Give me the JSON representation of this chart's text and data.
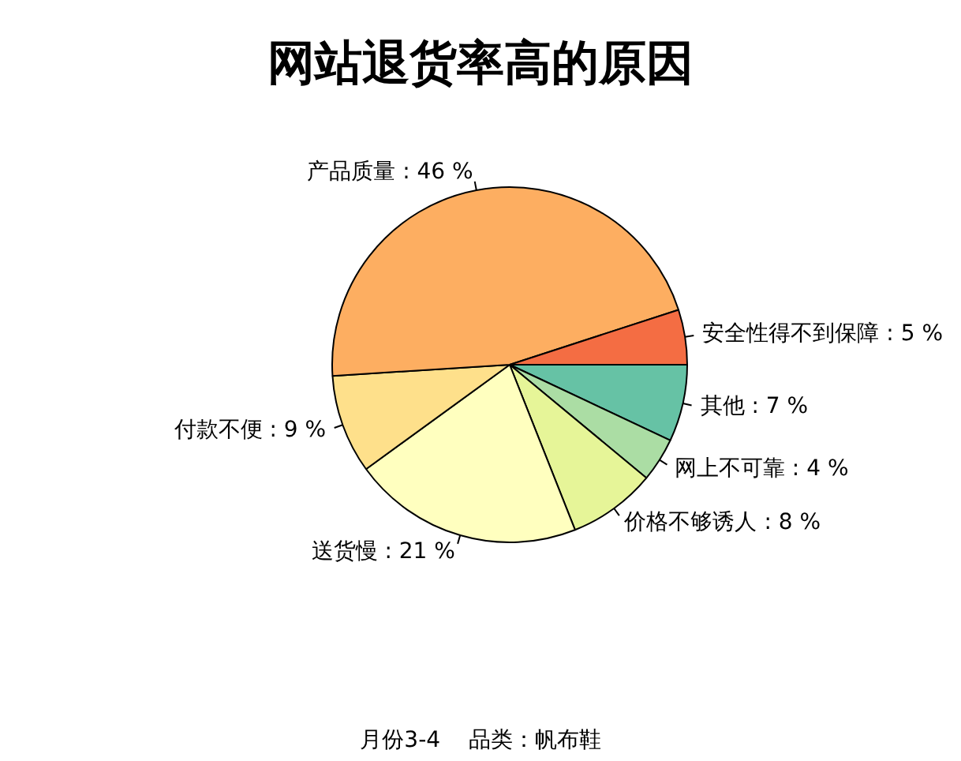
{
  "chart_data": {
    "type": "pie",
    "title": "网站退货率高的原因",
    "categories": [
      "其他",
      "网上不可靠",
      "价格不够诱人",
      "送货慢",
      "付款不便",
      "产品质量",
      "安全性得不到保障"
    ],
    "values": [
      7,
      4,
      8,
      21,
      9,
      46,
      5
    ],
    "colors": [
      "#66c2a5",
      "#abdda4",
      "#e6f598",
      "#ffffbf",
      "#fee08b",
      "#fdae61",
      "#f46d43"
    ],
    "value_labels": [
      "7 %",
      "4 %",
      "8 %",
      "21 %",
      "9 %",
      "46 %",
      "5 %"
    ],
    "annotations": [
      "月份3-4    品类：帆布鞋"
    ],
    "legend": false
  }
}
